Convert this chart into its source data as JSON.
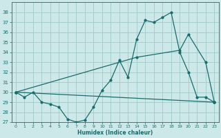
{
  "xlabel": "Humidex (Indice chaleur)",
  "bg_color": "#cde8e8",
  "grid_color": "#a0c8c8",
  "line_color": "#1a6b6b",
  "xlim": [
    -0.5,
    23.5
  ],
  "ylim": [
    27,
    39
  ],
  "yticks": [
    27,
    28,
    29,
    30,
    31,
    32,
    33,
    34,
    35,
    36,
    37,
    38
  ],
  "xticks": [
    0,
    1,
    2,
    3,
    4,
    5,
    6,
    7,
    8,
    9,
    10,
    11,
    12,
    13,
    14,
    15,
    16,
    17,
    18,
    19,
    20,
    21,
    22,
    23
  ],
  "line1_x": [
    0,
    1,
    2,
    3,
    4,
    5,
    6,
    7,
    8,
    9,
    10,
    11,
    12,
    13,
    14,
    15,
    16,
    17,
    18,
    19,
    20,
    21,
    22,
    23
  ],
  "line1_y": [
    30.0,
    29.5,
    30.0,
    29.0,
    28.8,
    28.5,
    27.3,
    27.0,
    27.2,
    28.5,
    30.2,
    31.2,
    33.2,
    31.5,
    35.3,
    37.2,
    37.0,
    37.5,
    38.0,
    34.0,
    32.0,
    29.5,
    29.5,
    29.0
  ],
  "line2_x": [
    0,
    23
  ],
  "line2_y": [
    30.0,
    29.0
  ],
  "line3_x": [
    0,
    14,
    19,
    20,
    22,
    23
  ],
  "line3_y": [
    30.0,
    33.5,
    34.2,
    35.8,
    33.0,
    29.0
  ]
}
